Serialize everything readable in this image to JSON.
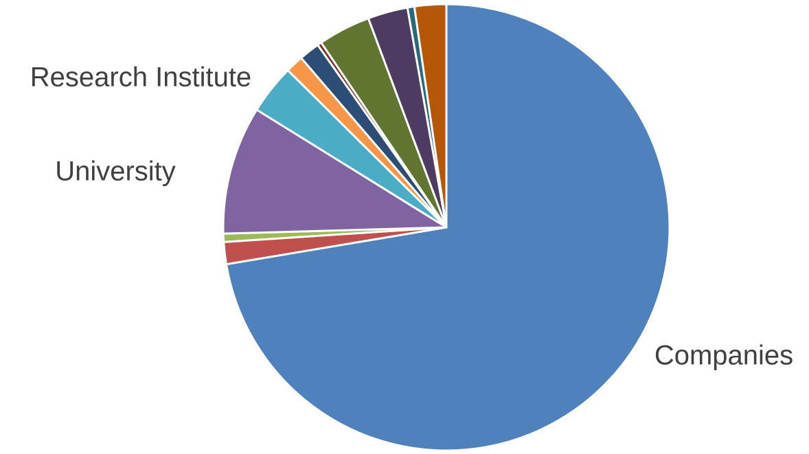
{
  "chart_data": {
    "type": "pie",
    "title": "",
    "start_angle_deg": 0,
    "direction": "clockwise",
    "slices": [
      {
        "label": "Companies",
        "value": 72.5,
        "color": "#4F81BD",
        "show_label": true
      },
      {
        "label": "",
        "value": 1.6,
        "color": "#C0504D",
        "show_label": false
      },
      {
        "label": "",
        "value": 0.6,
        "color": "#9BBB59",
        "show_label": false
      },
      {
        "label": "University",
        "value": 9.3,
        "color": "#8064A2",
        "show_label": true
      },
      {
        "label": "",
        "value": 3.6,
        "color": "#4BACC6",
        "show_label": false
      },
      {
        "label": "Research Institute",
        "value": 1.3,
        "color": "#F79646",
        "show_label": true
      },
      {
        "label": "",
        "value": 1.5,
        "color": "#2C4D75",
        "show_label": false
      },
      {
        "label": "",
        "value": 0.3,
        "color": "#772C2A",
        "show_label": false
      },
      {
        "label": "",
        "value": 3.8,
        "color": "#5F7530",
        "show_label": false
      },
      {
        "label": "",
        "value": 2.9,
        "color": "#4D3B62",
        "show_label": false
      },
      {
        "label": "",
        "value": 0.5,
        "color": "#276A7C",
        "show_label": false
      },
      {
        "label": "",
        "value": 2.3,
        "color": "#B65708",
        "show_label": false
      }
    ]
  }
}
